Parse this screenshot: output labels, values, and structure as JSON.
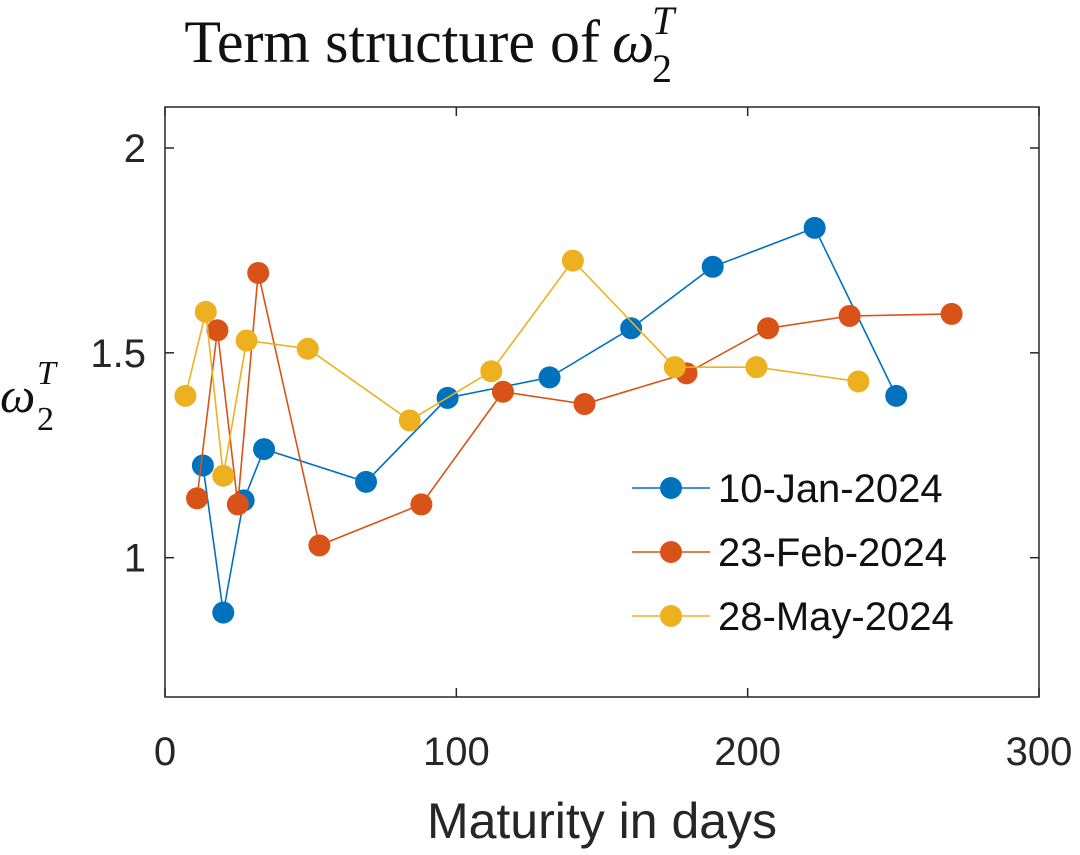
{
  "chart_data": {
    "type": "line",
    "title": "Term structure of",
    "title_math": {
      "symbol": "ω",
      "subscript": "2",
      "superscript": "T"
    },
    "xlabel": "Maturity in days",
    "ylabel": {
      "symbol": "ω",
      "subscript": "2",
      "superscript": "T"
    },
    "xlim": [
      0,
      300
    ],
    "ylim": [
      0.66,
      2.1
    ],
    "xticks": [
      0,
      100,
      200,
      300
    ],
    "xtick_labels": [
      "0",
      "100",
      "200",
      "300"
    ],
    "yticks": [
      1,
      1.5,
      2
    ],
    "ytick_labels": [
      "1",
      "1.5",
      "2"
    ],
    "grid": false,
    "legend_position": "bottom-right",
    "series": [
      {
        "name": "10-Jan-2024",
        "color": "#0072BD",
        "x": [
          13,
          20,
          27,
          34,
          69,
          97,
          132,
          160,
          188,
          223,
          251
        ],
        "y": [
          1.225,
          0.866,
          1.14,
          1.265,
          1.185,
          1.39,
          1.44,
          1.56,
          1.71,
          1.805,
          1.395
        ]
      },
      {
        "name": "23-Feb-2024",
        "color": "#D95319",
        "x": [
          11,
          18,
          25,
          32,
          53,
          88,
          116,
          144,
          179,
          207,
          235,
          270
        ],
        "y": [
          1.145,
          1.555,
          1.13,
          1.695,
          1.03,
          1.13,
          1.405,
          1.375,
          1.45,
          1.56,
          1.59,
          1.595
        ]
      },
      {
        "name": "28-May-2024",
        "color": "#EDB120",
        "x": [
          7,
          14,
          20,
          28,
          49,
          84,
          112,
          140,
          175,
          203,
          238
        ],
        "y": [
          1.395,
          1.6,
          1.2,
          1.53,
          1.51,
          1.335,
          1.455,
          1.725,
          1.465,
          1.465,
          1.43
        ]
      }
    ]
  }
}
